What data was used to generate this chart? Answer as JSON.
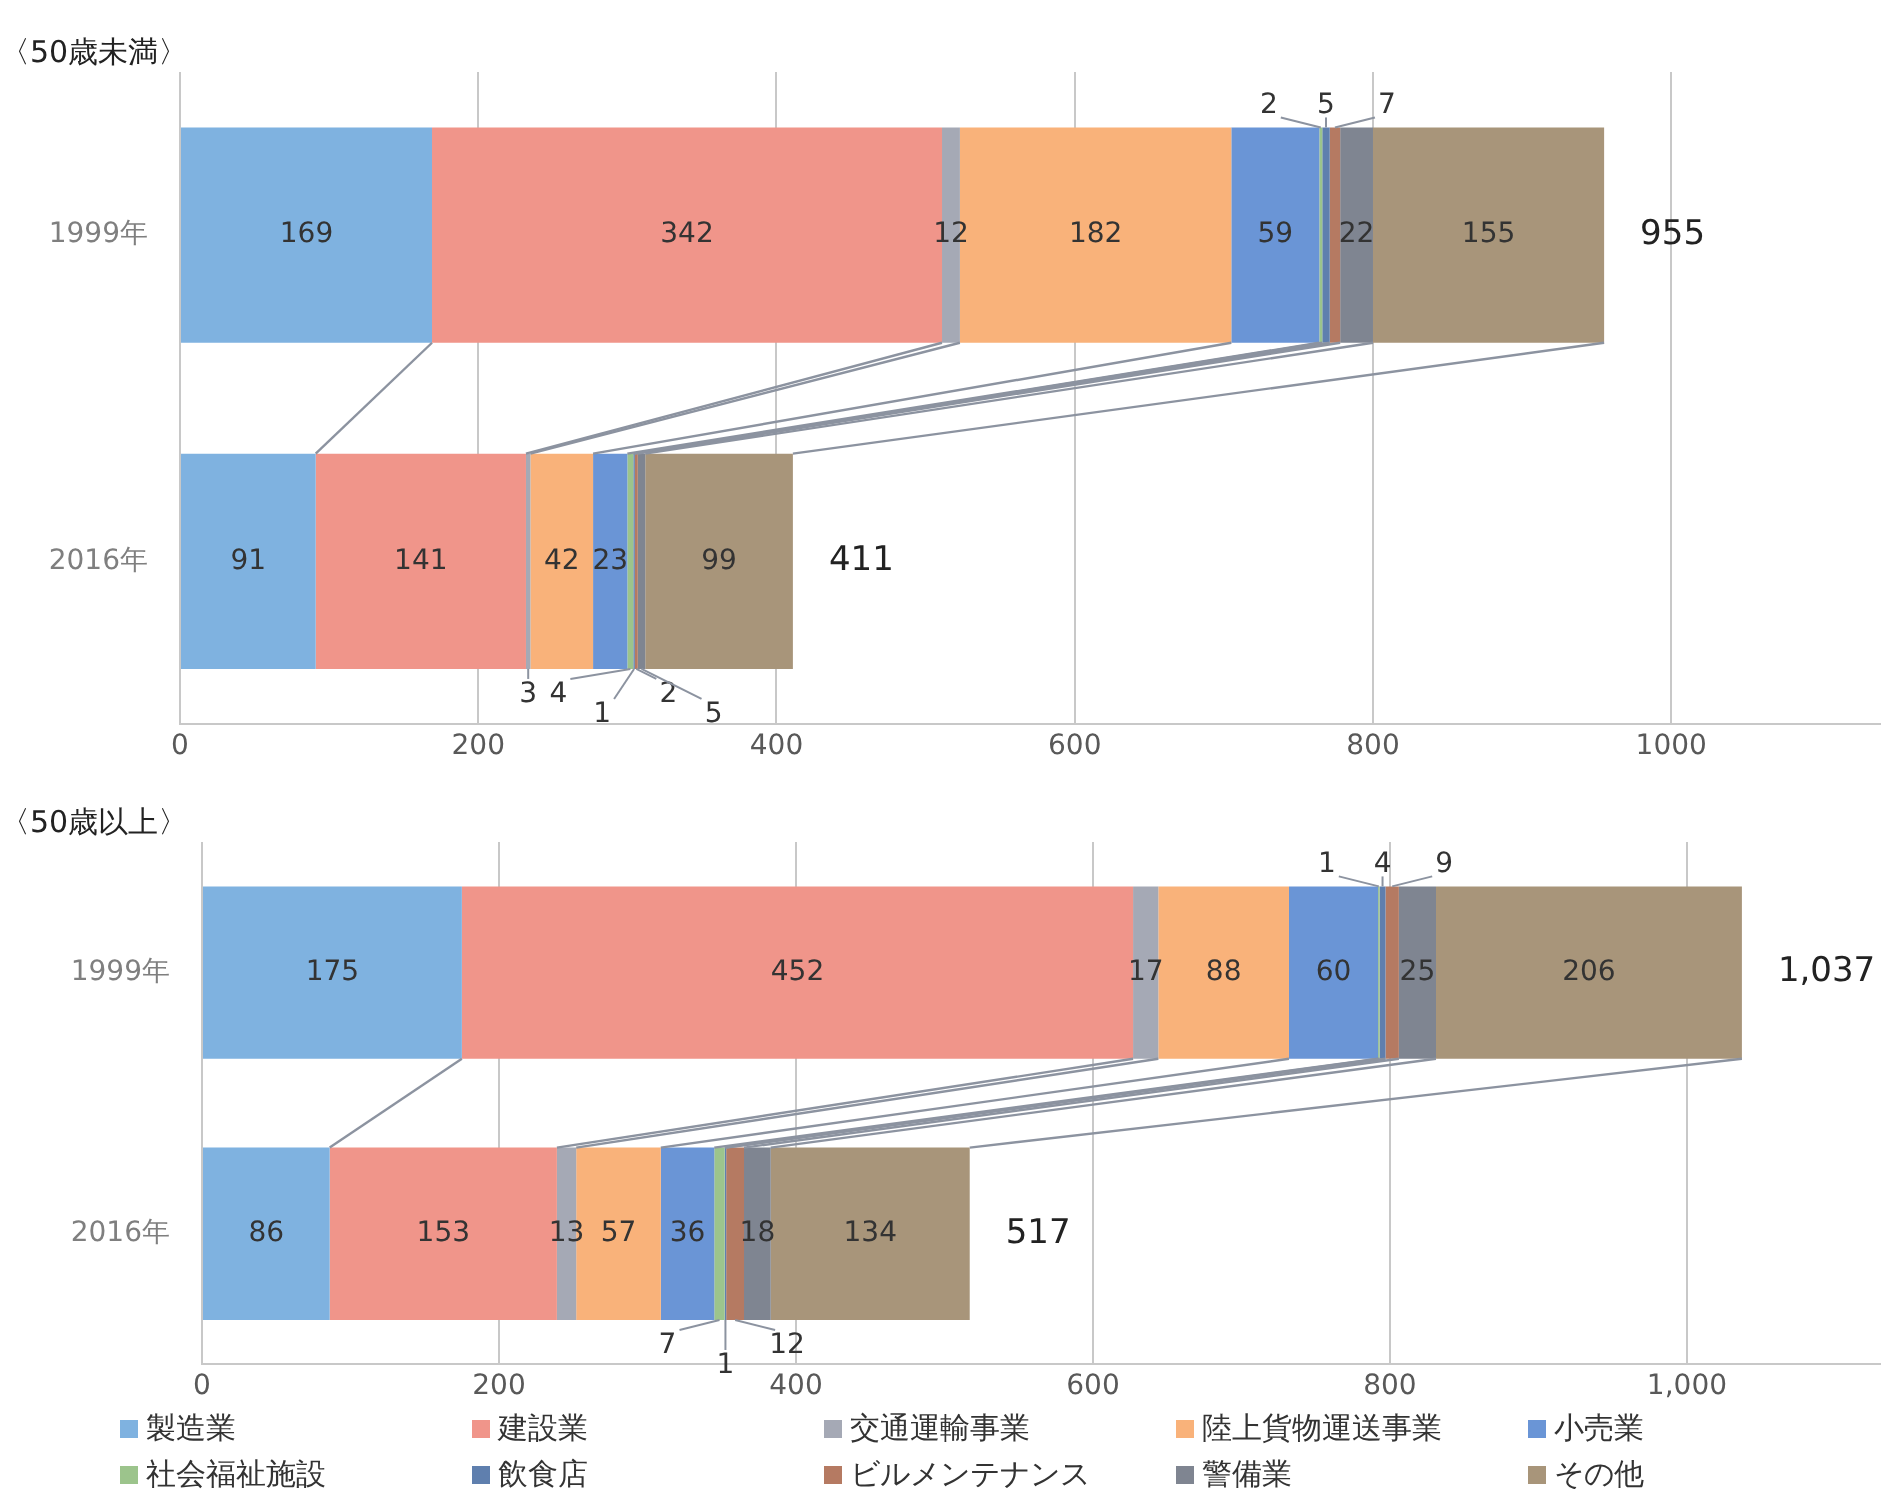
{
  "chart_data": [
    {
      "type": "bar",
      "orientation": "horizontal",
      "stacked": true,
      "title": "〈50歳未満〉",
      "categories": [
        "1999年",
        "2016年"
      ],
      "xlim": [
        0,
        1140
      ],
      "xticks": [
        0,
        200,
        400,
        600,
        800,
        1000
      ],
      "grid": "x",
      "legend": false,
      "data_labels": true,
      "totals": [
        "955",
        "411"
      ],
      "series": [
        {
          "color": "#7fb2e0",
          "values": [
            169,
            91
          ]
        },
        {
          "color": "#f0958a",
          "values": [
            342,
            141
          ]
        },
        {
          "color": "#a5a9b5",
          "values": [
            12,
            3
          ]
        },
        {
          "color": "#f9b27a",
          "values": [
            182,
            42
          ]
        },
        {
          "color": "#6a95d6",
          "values": [
            59,
            23
          ]
        },
        {
          "color": "#9cc48c",
          "values": [
            2,
            4
          ]
        },
        {
          "color": "#5f7fae",
          "values": [
            5,
            1
          ]
        },
        {
          "color": "#b57a62",
          "values": [
            7,
            2
          ]
        },
        {
          "color": "#7f8591",
          "values": [
            22,
            5
          ]
        },
        {
          "color": "#a8957a",
          "values": [
            155,
            99
          ]
        }
      ]
    },
    {
      "type": "bar",
      "orientation": "horizontal",
      "stacked": true,
      "title": "〈50歳以上〉",
      "categories": [
        "1999年",
        "2016年"
      ],
      "xlim": [
        0,
        1130
      ],
      "xticks": [
        0,
        200,
        400,
        600,
        800,
        {
          "value": 1000,
          "label": "1,000"
        }
      ],
      "grid": "x",
      "legend": "bottom",
      "data_labels": true,
      "totals": [
        "1,037",
        "517"
      ],
      "series": [
        {
          "name": "製造業",
          "color": "#7fb2e0",
          "values": [
            175,
            86
          ]
        },
        {
          "name": "建設業",
          "color": "#f0958a",
          "values": [
            452,
            153
          ]
        },
        {
          "name": "交通運輸事業",
          "color": "#a5a9b5",
          "values": [
            17,
            13
          ]
        },
        {
          "name": "陸上貨物運送事業",
          "color": "#f9b27a",
          "values": [
            88,
            57
          ]
        },
        {
          "name": "小売業",
          "color": "#6a95d6",
          "values": [
            60,
            36
          ]
        },
        {
          "name": "社会福祉施設",
          "color": "#9cc48c",
          "values": [
            1,
            7
          ]
        },
        {
          "name": "飲食店",
          "color": "#5f7fae",
          "values": [
            4,
            1
          ]
        },
        {
          "name": "ビルメンテナンス",
          "color": "#b57a62",
          "values": [
            9,
            12
          ]
        },
        {
          "name": "警備業",
          "color": "#7f8591",
          "values": [
            25,
            18
          ]
        },
        {
          "name": "その他",
          "color": "#a8957a",
          "values": [
            206,
            134
          ]
        }
      ]
    }
  ]
}
